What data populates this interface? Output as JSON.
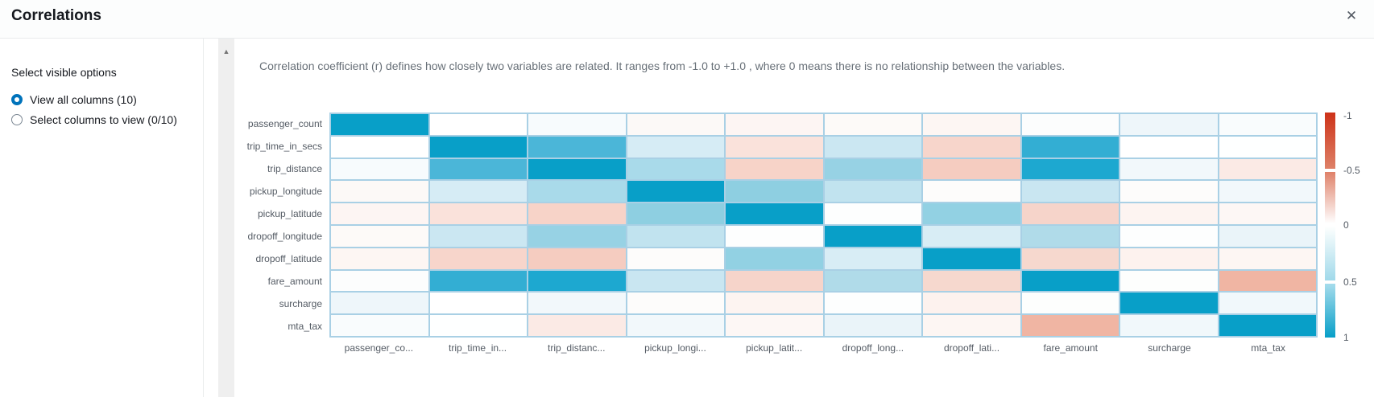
{
  "header": {
    "title": "Correlations",
    "close_icon": "✕"
  },
  "icons": {
    "up_arrow": "▲"
  },
  "sidebar": {
    "section_label": "Select visible options",
    "options": [
      {
        "label": "View all columns (10)",
        "selected": true
      },
      {
        "label": "Select columns to view (0/10)",
        "selected": false
      }
    ]
  },
  "description": "Correlation coefficient (r) defines how closely two variables are related. It ranges from -1.0 to +1.0 , where 0 means there is no relationship between the variables.",
  "colors": {
    "accent_blue": "#0073bb",
    "heat_positive_max": "#089fc8",
    "heat_negative_max": "#d13212",
    "grid_line": "#a9d0e5",
    "muted_text": "#545b64"
  },
  "chart_data": {
    "type": "heatmap",
    "title": "",
    "row_labels": [
      "passenger_count",
      "trip_time_in_secs",
      "trip_distance",
      "pickup_longitude",
      "pickup_latitude",
      "dropoff_longitude",
      "dropoff_latitude",
      "fare_amount",
      "surcharge",
      "mta_tax"
    ],
    "col_labels": [
      "passenger_co...",
      "trip_time_in...",
      "trip_distanc...",
      "pickup_longi...",
      "pickup_latit...",
      "dropoff_long...",
      "dropoff_lati...",
      "fare_amount",
      "surcharge",
      "mta_tax"
    ],
    "values": [
      [
        1.0,
        0.0,
        0.03,
        -0.02,
        -0.04,
        -0.02,
        -0.04,
        0.01,
        0.06,
        0.02
      ],
      [
        0.0,
        1.0,
        0.62,
        0.15,
        -0.12,
        0.19,
        -0.17,
        0.68,
        0.0,
        0.0
      ],
      [
        0.03,
        0.62,
        1.0,
        0.32,
        -0.18,
        0.4,
        -0.21,
        0.8,
        0.05,
        -0.09
      ],
      [
        -0.02,
        0.15,
        0.32,
        1.0,
        0.43,
        0.24,
        -0.01,
        0.21,
        -0.01,
        0.05
      ],
      [
        -0.04,
        -0.12,
        -0.18,
        0.43,
        1.0,
        0.01,
        0.42,
        -0.17,
        -0.04,
        -0.03
      ],
      [
        -0.02,
        0.19,
        0.4,
        0.24,
        0.01,
        1.0,
        0.14,
        0.3,
        0.01,
        0.08
      ],
      [
        -0.04,
        -0.17,
        -0.21,
        -0.01,
        0.42,
        0.14,
        1.0,
        -0.16,
        -0.05,
        -0.04
      ],
      [
        0.01,
        0.68,
        0.8,
        0.21,
        -0.17,
        0.3,
        -0.16,
        1.0,
        0.01,
        -0.31
      ],
      [
        0.06,
        0.0,
        0.05,
        -0.01,
        -0.04,
        0.01,
        -0.05,
        0.01,
        1.0,
        0.05
      ],
      [
        0.02,
        0.0,
        -0.09,
        0.05,
        -0.03,
        0.08,
        -0.04,
        -0.31,
        0.05,
        1.0
      ]
    ],
    "cell_colors": [
      [
        "#089fc8",
        "#ffffff",
        "#f7fbfd",
        "#fcf9f7",
        "#fdf5f3",
        "#fdfaf8",
        "#fdf6f3",
        "#fcfdfd",
        "#eef6fa",
        "#f9fcfd"
      ],
      [
        "#ffffff",
        "#089fc8",
        "#4bb6d8",
        "#d6ecf5",
        "#fae2db",
        "#cbe7f2",
        "#f7d5cb",
        "#33aed3",
        "#ffffff",
        "#feffff"
      ],
      [
        "#f7fbfd",
        "#4bb6d8",
        "#089fc8",
        "#a9daea",
        "#f7d3c8",
        "#97d2e4",
        "#f5ccc0",
        "#1da8d0",
        "#f2f8fb",
        "#fbeae5"
      ],
      [
        "#fcf9f7",
        "#d6ecf5",
        "#a9daea",
        "#089fc8",
        "#8ecfe1",
        "#c1e3ef",
        "#fdfcfb",
        "#c9e6f1",
        "#fdfcfb",
        "#f2f8fb"
      ],
      [
        "#fdf5f3",
        "#fae2db",
        "#f7d3c8",
        "#8ecfe1",
        "#089fc8",
        "#fdfefe",
        "#92d1e3",
        "#f6d4ca",
        "#fdf4f1",
        "#fdf7f5"
      ],
      [
        "#fdfaf8",
        "#cbe7f2",
        "#97d2e4",
        "#c1e3ef",
        "#fdfefe",
        "#089fc8",
        "#d8edf5",
        "#b0dbe9",
        "#fdfefe",
        "#eaf4f9"
      ],
      [
        "#fdf6f3",
        "#f7d5cb",
        "#f5ccc0",
        "#fdfcfb",
        "#92d1e3",
        "#d8edf5",
        "#089fc8",
        "#f6d8ce",
        "#fdf2ee",
        "#fdf6f3"
      ],
      [
        "#fcfdfd",
        "#33aed3",
        "#1da8d0",
        "#c9e6f1",
        "#f6d4ca",
        "#b0dbe9",
        "#f6d8ce",
        "#089fc8",
        "#fdfefd",
        "#f0b5a3"
      ],
      [
        "#eef6fa",
        "#ffffff",
        "#f2f8fb",
        "#fdfcfb",
        "#fdf4f1",
        "#fdfefe",
        "#fdf2ee",
        "#fdfefd",
        "#089fc8",
        "#f1f8fb"
      ],
      [
        "#f9fcfd",
        "#feffff",
        "#fbeae5",
        "#f2f8fb",
        "#fdf7f5",
        "#eaf4f9",
        "#fdf6f3",
        "#f0b5a3",
        "#f1f8fb",
        "#089fc8"
      ]
    ],
    "legend": {
      "position": "right",
      "min": -1,
      "max": 1,
      "ticks": [
        "-1",
        "-0.5",
        "0",
        "0.5",
        "1"
      ],
      "segments": [
        [
          "#cd3218",
          "#de8168"
        ],
        [
          "#df8169",
          "#ffffff"
        ],
        [
          "#fefffe",
          "#a0d9ea"
        ],
        [
          "#a6dcec",
          "#079fc8"
        ]
      ]
    },
    "grid": true
  }
}
